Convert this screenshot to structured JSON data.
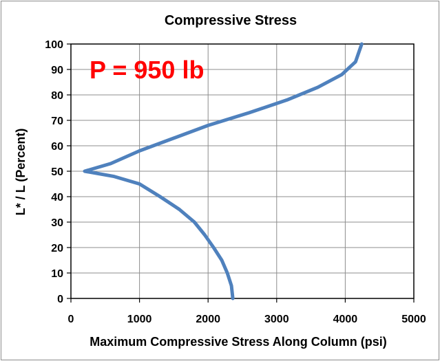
{
  "chart_data": {
    "type": "line",
    "title": "Compressive Stress",
    "xlabel": "Maximum Compressive Stress Along Column (psi)",
    "ylabel": "L* / L  (Percent)",
    "annotation": "P = 950 lb",
    "annotation_color": "#ff0000",
    "line_color": "#4f81bd",
    "grid": true,
    "xlim": [
      0,
      5000
    ],
    "ylim": [
      0,
      100
    ],
    "x_ticks": [
      0,
      1000,
      2000,
      3000,
      4000,
      5000
    ],
    "y_ticks": [
      0,
      10,
      20,
      30,
      40,
      50,
      60,
      70,
      80,
      90,
      100
    ],
    "series": [
      {
        "x": [
          2360,
          2340,
          2280,
          2200,
          2080,
          1950,
          1800,
          1580,
          1300,
          1000,
          620,
          200,
          580,
          1000,
          1500,
          2000,
          2600,
          3150,
          3600,
          3950,
          4150,
          4240
        ],
        "y": [
          0,
          5,
          10,
          15,
          20,
          25,
          30,
          35,
          40,
          45,
          48,
          50,
          53,
          58,
          63,
          68,
          73,
          78,
          83,
          88,
          93,
          100
        ]
      }
    ]
  }
}
